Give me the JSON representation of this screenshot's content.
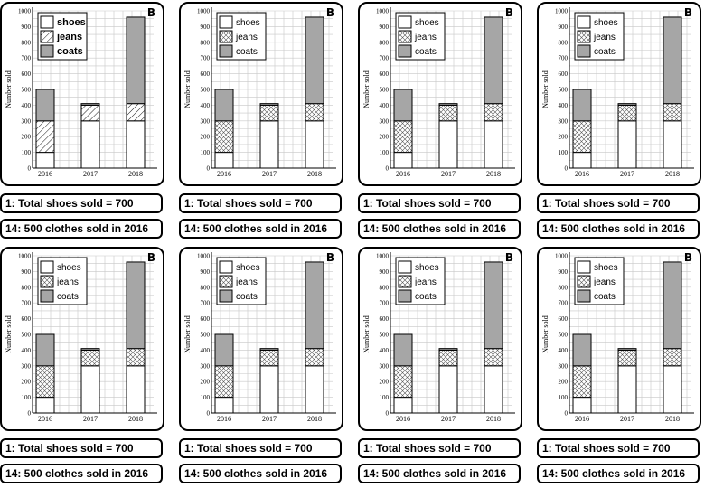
{
  "badge": "B",
  "captions": {
    "c1": "1: Total shoes sold = 700",
    "c2": "14: 500 clothes sold in 2016"
  },
  "colors": {
    "shoes": "#ffffff",
    "coats": "#a6a6a6",
    "grid": "#c8c8c8",
    "border": "#000000"
  },
  "chart_data": {
    "type": "bar",
    "stacked": true,
    "categories": [
      "2016",
      "2017",
      "2018"
    ],
    "series": [
      {
        "name": "shoes",
        "values": [
          100,
          300,
          300
        ],
        "fill": "white"
      },
      {
        "name": "jeans",
        "values": [
          200,
          100,
          110
        ],
        "fill": "hatched"
      },
      {
        "name": "coats",
        "values": [
          200,
          10,
          550
        ],
        "fill": "grey"
      }
    ],
    "ylabel": "Number sold",
    "ylim": [
      0,
      1000
    ],
    "yticks": [
      0,
      100,
      200,
      300,
      400,
      500,
      600,
      700,
      800,
      900,
      1000
    ],
    "grid": true,
    "legend": "top-left",
    "panel_count": 8
  }
}
